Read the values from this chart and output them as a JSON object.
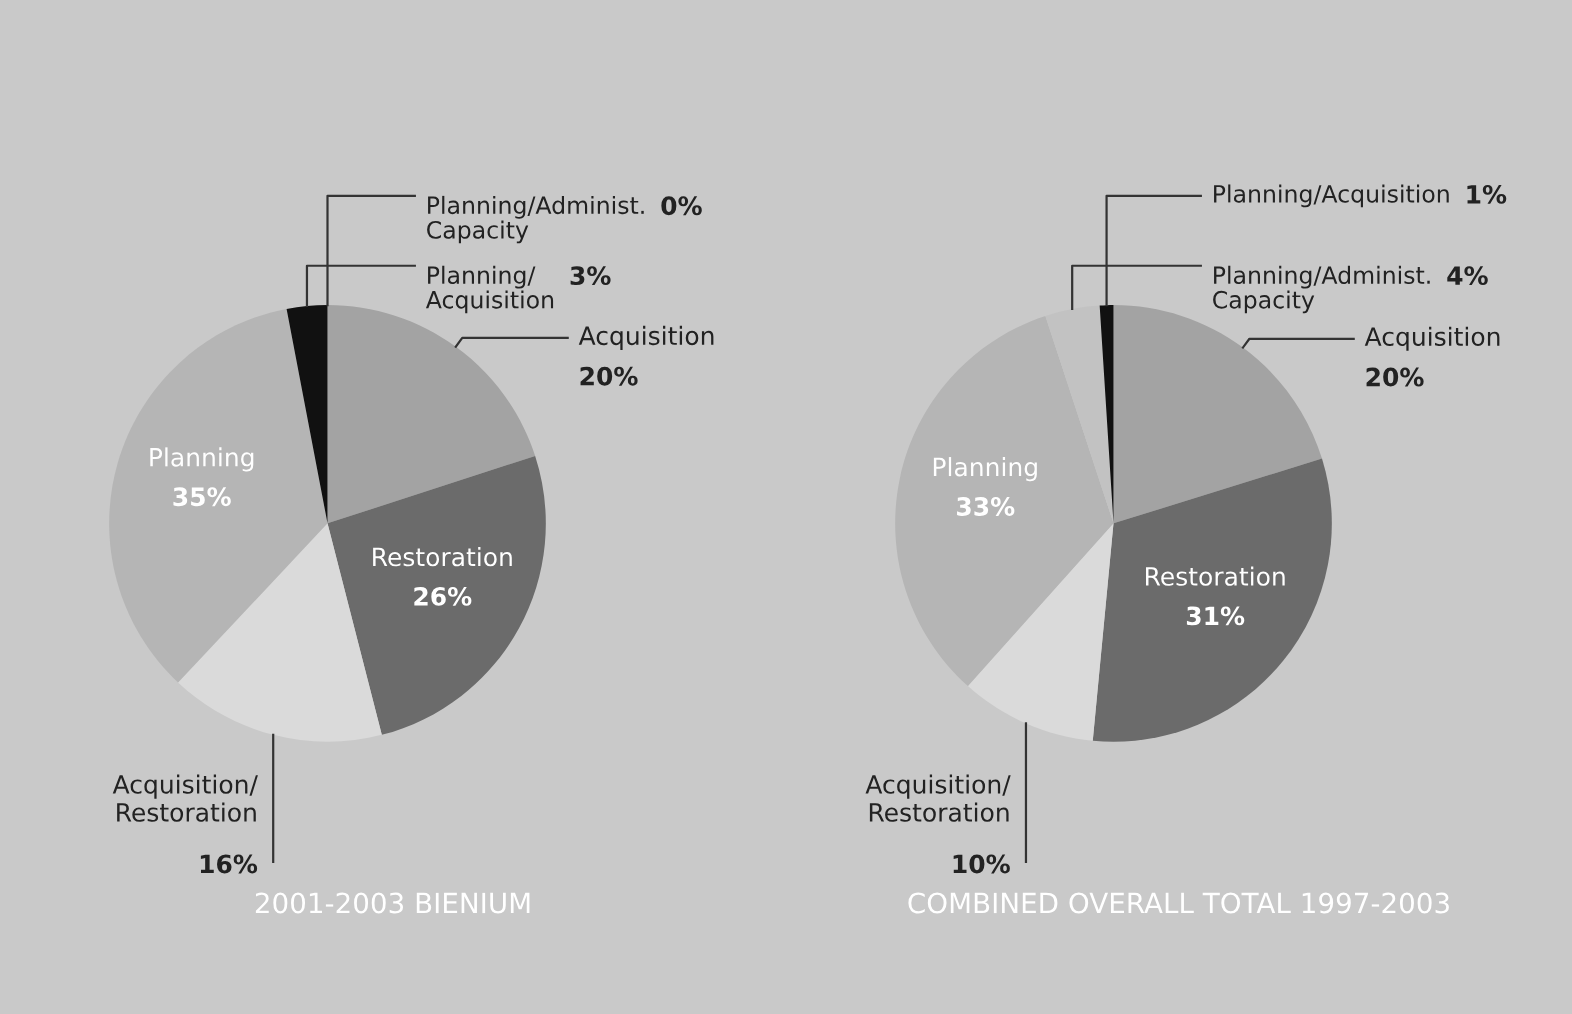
{
  "chart_data": [
    {
      "type": "pie",
      "title": "2001-2003 BIENIUM",
      "categories": [
        "Acquisition",
        "Restoration",
        "Acquisition/\nRestoration",
        "Planning",
        "Planning/\nAcquisition",
        "Planning/Administ.\nCapacity"
      ],
      "values": [
        20,
        26,
        16,
        35,
        3,
        0
      ],
      "colors": [
        "#a3a3a3",
        "#6b6b6b",
        "#dadada",
        "#b5b5b5",
        "#111111",
        "#c2c2c2"
      ],
      "value_labels": [
        "20%",
        "26%",
        "16%",
        "35%",
        "3%",
        "0%"
      ]
    },
    {
      "type": "pie",
      "title": "COMBINED OVERALL TOTAL 1997-2003",
      "categories": [
        "Acquisition",
        "Restoration",
        "Acquisition/\nRestoration",
        "Planning",
        "Planning/Administ.\nCapacity",
        "Planning/Acquisition"
      ],
      "values": [
        20,
        31,
        10,
        33,
        4,
        1
      ],
      "colors": [
        "#a3a3a3",
        "#6b6b6b",
        "#dadada",
        "#b5b5b5",
        "#c2c2c2",
        "#111111"
      ],
      "value_labels": [
        "20%",
        "31%",
        "10%",
        "33%",
        "4%",
        "1%"
      ]
    }
  ]
}
